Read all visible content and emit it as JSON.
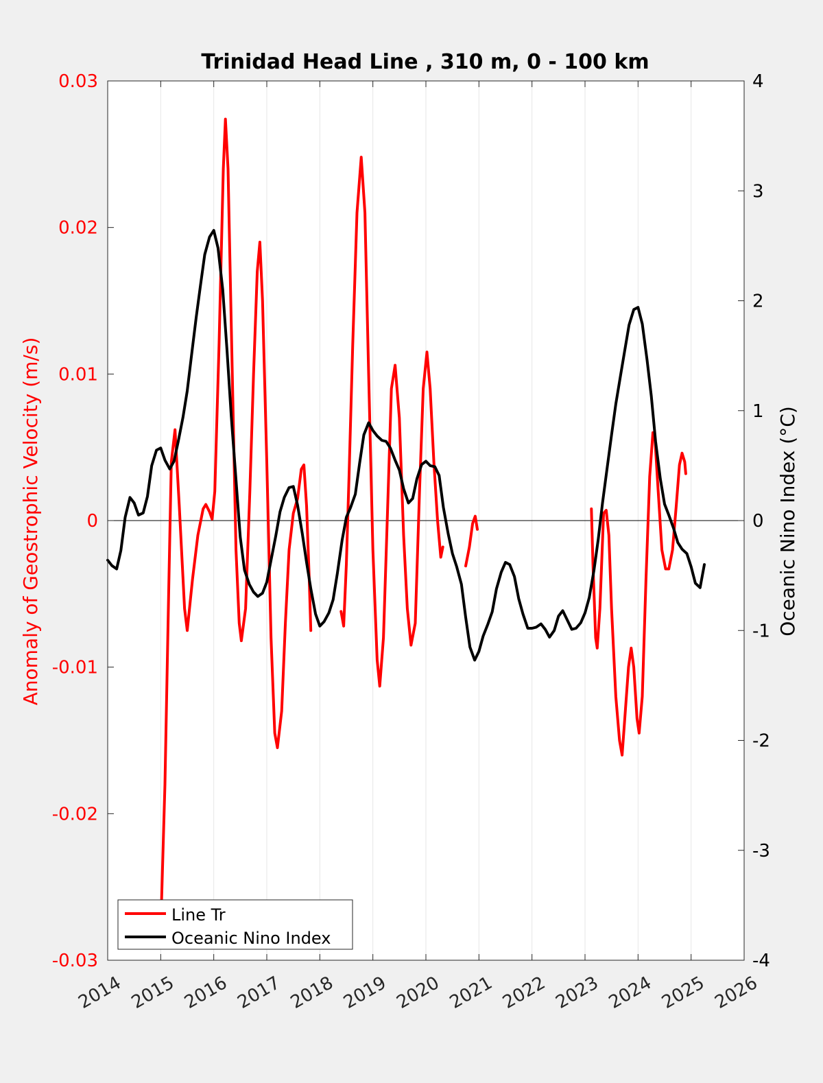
{
  "chart_data": {
    "type": "line",
    "title": "Trinidad Head Line , 310 m, 0 - 100 km",
    "xlabel": "",
    "ylabel_left": "Anomaly of Geostrophic Velocity (m/s)",
    "ylabel_right": "Oceanic Nino Index (°C)",
    "xlim": [
      2014,
      2026
    ],
    "ylim_left": [
      -0.03,
      0.03
    ],
    "ylim_right": [
      -4,
      4
    ],
    "x_ticks": [
      "2014",
      "2015",
      "2016",
      "2017",
      "2018",
      "2019",
      "2020",
      "2021",
      "2022",
      "2023",
      "2024",
      "2025",
      "2026"
    ],
    "y_ticks_left": [
      "-0.03",
      "-0.02",
      "-0.01",
      "0",
      "0.01",
      "0.02",
      "0.03"
    ],
    "y_ticks_right": [
      "-4",
      "-3",
      "-2",
      "-1",
      "0",
      "1",
      "2",
      "3",
      "4"
    ],
    "grid": "vertical",
    "legend_position": "bottom-left",
    "colors": {
      "line_tr": "#ff0000",
      "oni": "#000000",
      "left_axis": "#ff0000",
      "right_axis": "#000000"
    },
    "series": [
      {
        "name": "Line Tr",
        "axis": "left",
        "segments": [
          [
            [
              2015.0,
              -0.028
            ],
            [
              2015.08,
              -0.018
            ],
            [
              2015.15,
              -0.005
            ],
            [
              2015.2,
              0.004
            ],
            [
              2015.27,
              0.0062
            ],
            [
              2015.35,
              0.001
            ],
            [
              2015.45,
              -0.006
            ],
            [
              2015.5,
              -0.0075
            ],
            [
              2015.6,
              -0.004
            ],
            [
              2015.7,
              -0.001
            ],
            [
              2015.8,
              0.0008
            ],
            [
              2015.85,
              0.0011
            ],
            [
              2015.92,
              0.0006
            ],
            [
              2015.97,
              0.0001
            ],
            [
              2016.02,
              0.002
            ],
            [
              2016.1,
              0.012
            ],
            [
              2016.18,
              0.024
            ],
            [
              2016.22,
              0.0274
            ],
            [
              2016.27,
              0.024
            ],
            [
              2016.35,
              0.01
            ],
            [
              2016.42,
              -0.002
            ],
            [
              2016.48,
              -0.007
            ],
            [
              2016.52,
              -0.0082
            ],
            [
              2016.6,
              -0.006
            ],
            [
              2016.68,
              0.002
            ],
            [
              2016.75,
              0.01
            ],
            [
              2016.82,
              0.017
            ],
            [
              2016.87,
              0.019
            ],
            [
              2016.92,
              0.015
            ],
            [
              2017.0,
              0.004
            ],
            [
              2017.08,
              -0.008
            ],
            [
              2017.15,
              -0.0145
            ],
            [
              2017.2,
              -0.0155
            ],
            [
              2017.28,
              -0.013
            ],
            [
              2017.35,
              -0.007
            ],
            [
              2017.42,
              -0.002
            ],
            [
              2017.5,
              0.0005
            ],
            [
              2017.58,
              0.0015
            ],
            [
              2017.65,
              0.0035
            ],
            [
              2017.7,
              0.0038
            ],
            [
              2017.75,
              0.001
            ],
            [
              2017.8,
              -0.004
            ],
            [
              2017.83,
              -0.0075
            ]
          ],
          [
            [
              2018.4,
              -0.0062
            ],
            [
              2018.45,
              -0.0072
            ],
            [
              2018.5,
              -0.003
            ],
            [
              2018.55,
              0.003
            ],
            [
              2018.62,
              0.012
            ],
            [
              2018.7,
              0.021
            ],
            [
              2018.78,
              0.0248
            ],
            [
              2018.85,
              0.021
            ],
            [
              2018.92,
              0.01
            ],
            [
              2019.0,
              -0.002
            ],
            [
              2019.08,
              -0.0095
            ],
            [
              2019.13,
              -0.0113
            ],
            [
              2019.2,
              -0.008
            ],
            [
              2019.28,
              0.001
            ],
            [
              2019.35,
              0.009
            ],
            [
              2019.42,
              0.0106
            ],
            [
              2019.5,
              0.007
            ],
            [
              2019.58,
              -0.001
            ],
            [
              2019.65,
              -0.006
            ],
            [
              2019.72,
              -0.0085
            ],
            [
              2019.8,
              -0.007
            ],
            [
              2019.88,
              0.002
            ],
            [
              2019.95,
              0.009
            ],
            [
              2020.02,
              0.0115
            ],
            [
              2020.08,
              0.009
            ],
            [
              2020.15,
              0.004
            ],
            [
              2020.22,
              0.0
            ],
            [
              2020.28,
              -0.0025
            ],
            [
              2020.32,
              -0.0018
            ]
          ],
          [
            [
              2020.75,
              -0.0031
            ],
            [
              2020.82,
              -0.0018
            ],
            [
              2020.88,
              -0.0002
            ],
            [
              2020.93,
              0.0003
            ],
            [
              2020.97,
              -0.0006
            ]
          ],
          [
            [
              2023.12,
              0.0008
            ],
            [
              2023.15,
              -0.003
            ],
            [
              2023.2,
              -0.008
            ],
            [
              2023.23,
              -0.0087
            ],
            [
              2023.28,
              -0.006
            ],
            [
              2023.35,
              0.0005
            ],
            [
              2023.4,
              0.0007
            ],
            [
              2023.45,
              -0.001
            ],
            [
              2023.5,
              -0.006
            ],
            [
              2023.58,
              -0.012
            ],
            [
              2023.65,
              -0.015
            ],
            [
              2023.7,
              -0.016
            ],
            [
              2023.75,
              -0.0135
            ],
            [
              2023.82,
              -0.01
            ],
            [
              2023.87,
              -0.0087
            ],
            [
              2023.92,
              -0.01
            ],
            [
              2023.98,
              -0.0135
            ],
            [
              2024.02,
              -0.0145
            ],
            [
              2024.08,
              -0.012
            ],
            [
              2024.15,
              -0.004
            ],
            [
              2024.22,
              0.003
            ],
            [
              2024.28,
              0.006
            ],
            [
              2024.32,
              0.0055
            ],
            [
              2024.38,
              0.002
            ],
            [
              2024.45,
              -0.002
            ],
            [
              2024.52,
              -0.0033
            ],
            [
              2024.58,
              -0.0033
            ],
            [
              2024.65,
              -0.002
            ],
            [
              2024.72,
              0.001
            ],
            [
              2024.78,
              0.0038
            ],
            [
              2024.83,
              0.0046
            ],
            [
              2024.88,
              0.004
            ],
            [
              2024.9,
              0.0032
            ]
          ]
        ]
      },
      {
        "name": "Oceanic Nino Index",
        "axis": "right",
        "points": [
          [
            2014.0,
            -0.36
          ],
          [
            2014.08,
            -0.41
          ],
          [
            2014.17,
            -0.44
          ],
          [
            2014.25,
            -0.27
          ],
          [
            2014.33,
            0.03
          ],
          [
            2014.42,
            0.21
          ],
          [
            2014.5,
            0.16
          ],
          [
            2014.58,
            0.05
          ],
          [
            2014.67,
            0.07
          ],
          [
            2014.75,
            0.22
          ],
          [
            2014.83,
            0.5
          ],
          [
            2014.92,
            0.64
          ],
          [
            2015.0,
            0.66
          ],
          [
            2015.08,
            0.55
          ],
          [
            2015.17,
            0.47
          ],
          [
            2015.25,
            0.54
          ],
          [
            2015.33,
            0.72
          ],
          [
            2015.42,
            0.94
          ],
          [
            2015.5,
            1.18
          ],
          [
            2015.58,
            1.5
          ],
          [
            2015.67,
            1.85
          ],
          [
            2015.75,
            2.14
          ],
          [
            2015.83,
            2.42
          ],
          [
            2015.92,
            2.58
          ],
          [
            2016.0,
            2.64
          ],
          [
            2016.08,
            2.48
          ],
          [
            2016.17,
            2.1
          ],
          [
            2016.25,
            1.55
          ],
          [
            2016.33,
            0.95
          ],
          [
            2016.42,
            0.37
          ],
          [
            2016.5,
            -0.15
          ],
          [
            2016.58,
            -0.45
          ],
          [
            2016.67,
            -0.58
          ],
          [
            2016.75,
            -0.65
          ],
          [
            2016.83,
            -0.69
          ],
          [
            2016.92,
            -0.66
          ],
          [
            2017.0,
            -0.56
          ],
          [
            2017.08,
            -0.36
          ],
          [
            2017.17,
            -0.14
          ],
          [
            2017.25,
            0.08
          ],
          [
            2017.33,
            0.21
          ],
          [
            2017.42,
            0.3
          ],
          [
            2017.5,
            0.31
          ],
          [
            2017.58,
            0.14
          ],
          [
            2017.67,
            -0.12
          ],
          [
            2017.75,
            -0.38
          ],
          [
            2017.83,
            -0.62
          ],
          [
            2017.92,
            -0.85
          ],
          [
            2018.0,
            -0.96
          ],
          [
            2018.08,
            -0.92
          ],
          [
            2018.17,
            -0.84
          ],
          [
            2018.25,
            -0.72
          ],
          [
            2018.33,
            -0.48
          ],
          [
            2018.42,
            -0.18
          ],
          [
            2018.5,
            0.03
          ],
          [
            2018.58,
            0.12
          ],
          [
            2018.67,
            0.24
          ],
          [
            2018.75,
            0.52
          ],
          [
            2018.83,
            0.78
          ],
          [
            2018.92,
            0.89
          ],
          [
            2019.0,
            0.82
          ],
          [
            2019.08,
            0.77
          ],
          [
            2019.17,
            0.73
          ],
          [
            2019.25,
            0.72
          ],
          [
            2019.33,
            0.66
          ],
          [
            2019.42,
            0.55
          ],
          [
            2019.5,
            0.46
          ],
          [
            2019.58,
            0.29
          ],
          [
            2019.67,
            0.16
          ],
          [
            2019.75,
            0.2
          ],
          [
            2019.83,
            0.38
          ],
          [
            2019.92,
            0.51
          ],
          [
            2020.0,
            0.54
          ],
          [
            2020.08,
            0.5
          ],
          [
            2020.17,
            0.49
          ],
          [
            2020.25,
            0.41
          ],
          [
            2020.33,
            0.12
          ],
          [
            2020.42,
            -0.12
          ],
          [
            2020.5,
            -0.3
          ],
          [
            2020.58,
            -0.42
          ],
          [
            2020.67,
            -0.58
          ],
          [
            2020.75,
            -0.88
          ],
          [
            2020.83,
            -1.15
          ],
          [
            2020.92,
            -1.27
          ],
          [
            2021.0,
            -1.19
          ],
          [
            2021.08,
            -1.05
          ],
          [
            2021.17,
            -0.94
          ],
          [
            2021.25,
            -0.83
          ],
          [
            2021.33,
            -0.62
          ],
          [
            2021.42,
            -0.47
          ],
          [
            2021.5,
            -0.38
          ],
          [
            2021.58,
            -0.4
          ],
          [
            2021.67,
            -0.51
          ],
          [
            2021.75,
            -0.71
          ],
          [
            2021.83,
            -0.85
          ],
          [
            2021.92,
            -0.98
          ],
          [
            2022.0,
            -0.98
          ],
          [
            2022.08,
            -0.97
          ],
          [
            2022.17,
            -0.94
          ],
          [
            2022.25,
            -0.99
          ],
          [
            2022.33,
            -1.06
          ],
          [
            2022.42,
            -1.0
          ],
          [
            2022.5,
            -0.87
          ],
          [
            2022.58,
            -0.82
          ],
          [
            2022.67,
            -0.91
          ],
          [
            2022.75,
            -0.99
          ],
          [
            2022.83,
            -0.98
          ],
          [
            2022.92,
            -0.93
          ],
          [
            2023.0,
            -0.84
          ],
          [
            2023.08,
            -0.7
          ],
          [
            2023.17,
            -0.45
          ],
          [
            2023.25,
            -0.17
          ],
          [
            2023.33,
            0.16
          ],
          [
            2023.42,
            0.49
          ],
          [
            2023.5,
            0.78
          ],
          [
            2023.58,
            1.06
          ],
          [
            2023.67,
            1.32
          ],
          [
            2023.75,
            1.55
          ],
          [
            2023.83,
            1.78
          ],
          [
            2023.92,
            1.92
          ],
          [
            2024.0,
            1.94
          ],
          [
            2024.08,
            1.79
          ],
          [
            2024.17,
            1.46
          ],
          [
            2024.25,
            1.13
          ],
          [
            2024.33,
            0.72
          ],
          [
            2024.42,
            0.38
          ],
          [
            2024.5,
            0.15
          ],
          [
            2024.58,
            0.05
          ],
          [
            2024.67,
            -0.07
          ],
          [
            2024.75,
            -0.2
          ],
          [
            2024.83,
            -0.26
          ],
          [
            2024.92,
            -0.3
          ],
          [
            2025.0,
            -0.42
          ],
          [
            2025.08,
            -0.57
          ],
          [
            2025.17,
            -0.61
          ],
          [
            2025.25,
            -0.4
          ]
        ]
      }
    ]
  }
}
